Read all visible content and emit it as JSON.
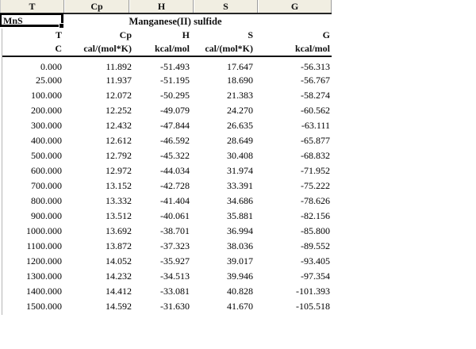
{
  "colors": {
    "header_bg": "#f1eee2",
    "header_divider": "#9c9c9c",
    "header_bottom_line": "#262626",
    "selection_border": "#000000",
    "grid_rule": "#131313",
    "sheet_left_border": "#b5b5b5",
    "text": "#111111",
    "background": "#ffffff"
  },
  "sheet": {
    "column_headers": [
      "T",
      "Cp",
      "H",
      "S",
      "G"
    ],
    "formula": "MnS",
    "compound_name": "Manganese(II) sulfide",
    "table": {
      "headers": [
        "T",
        "Cp",
        "H",
        "S",
        "G"
      ],
      "units": [
        "C",
        "cal/(mol*K)",
        "kcal/mol",
        "cal/(mol*K)",
        "kcal/mol"
      ],
      "rows": [
        [
          "0.000",
          "11.892",
          "-51.493",
          "17.647",
          "-56.313"
        ],
        [
          "25.000",
          "11.937",
          "-51.195",
          "18.690",
          "-56.767"
        ],
        [
          "100.000",
          "12.072",
          "-50.295",
          "21.383",
          "-58.274"
        ],
        [
          "200.000",
          "12.252",
          "-49.079",
          "24.270",
          "-60.562"
        ],
        [
          "300.000",
          "12.432",
          "-47.844",
          "26.635",
          "-63.111"
        ],
        [
          "400.000",
          "12.612",
          "-46.592",
          "28.649",
          "-65.877"
        ],
        [
          "500.000",
          "12.792",
          "-45.322",
          "30.408",
          "-68.832"
        ],
        [
          "600.000",
          "12.972",
          "-44.034",
          "31.974",
          "-71.952"
        ],
        [
          "700.000",
          "13.152",
          "-42.728",
          "33.391",
          "-75.222"
        ],
        [
          "800.000",
          "13.332",
          "-41.404",
          "34.686",
          "-78.626"
        ],
        [
          "900.000",
          "13.512",
          "-40.061",
          "35.881",
          "-82.156"
        ],
        [
          "1000.000",
          "13.692",
          "-38.701",
          "36.994",
          "-85.800"
        ],
        [
          "1100.000",
          "13.872",
          "-37.323",
          "38.036",
          "-89.552"
        ],
        [
          "1200.000",
          "14.052",
          "-35.927",
          "39.017",
          "-93.405"
        ],
        [
          "1300.000",
          "14.232",
          "-34.513",
          "39.946",
          "-97.354"
        ],
        [
          "1400.000",
          "14.412",
          "-33.081",
          "40.828",
          "-101.393"
        ],
        [
          "1500.000",
          "14.592",
          "-31.630",
          "41.670",
          "-105.518"
        ]
      ]
    }
  }
}
